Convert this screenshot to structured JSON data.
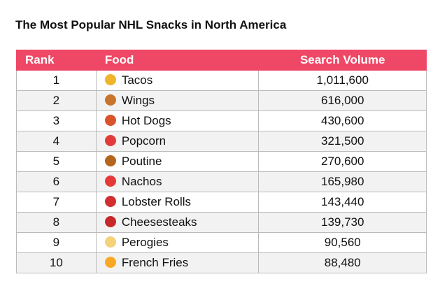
{
  "title": "The Most Popular NHL Snacks in North America",
  "table": {
    "header": [
      "Rank",
      "Food",
      "Search Volume"
    ],
    "rows": [
      [
        "1",
        "Tacos",
        "1,011,600"
      ],
      [
        "2",
        "Wings",
        "616,000"
      ],
      [
        "3",
        "Hot Dogs",
        "430,600"
      ],
      [
        "4",
        "Popcorn",
        "321,500"
      ],
      [
        "5",
        "Poutine",
        "270,600"
      ],
      [
        "6",
        "Nachos",
        "165,980"
      ],
      [
        "7",
        "Lobster Rolls",
        "143,440"
      ],
      [
        "8",
        "Cheesesteaks",
        "139,730"
      ],
      [
        "9",
        "Perogies",
        "90,560"
      ],
      [
        "10",
        "French Fries",
        "88,480"
      ]
    ]
  }
}
